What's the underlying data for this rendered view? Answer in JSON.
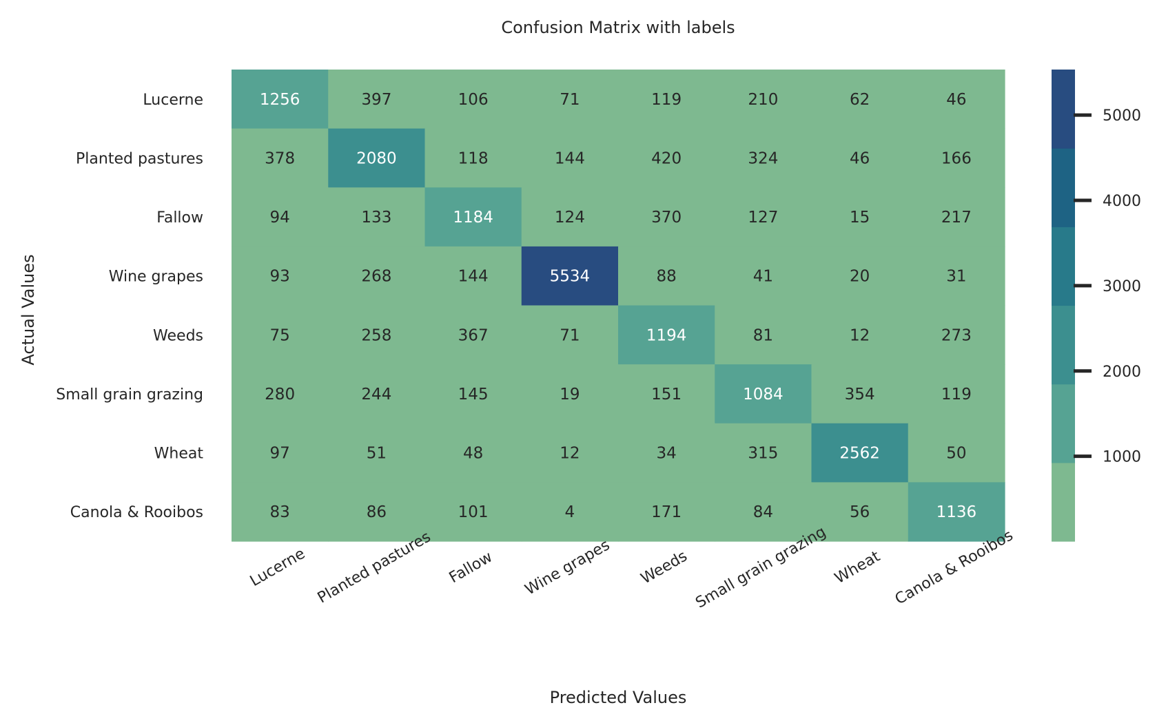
{
  "chart_data": {
    "type": "heatmap",
    "title": "Confusion Matrix with labels",
    "xlabel": "Predicted Values",
    "ylabel": "Actual Values",
    "x_categories": [
      "Lucerne",
      "Planted pastures",
      "Fallow",
      "Wine grapes",
      "Weeds",
      "Small grain grazing",
      "Wheat",
      "Canola & Rooibos"
    ],
    "y_categories": [
      "Lucerne",
      "Planted pastures",
      "Fallow",
      "Wine grapes",
      "Weeds",
      "Small grain grazing",
      "Wheat",
      "Canola & Rooibos"
    ],
    "values": [
      [
        1256,
        397,
        106,
        71,
        119,
        210,
        62,
        46
      ],
      [
        378,
        2080,
        118,
        144,
        420,
        324,
        46,
        166
      ],
      [
        94,
        133,
        1184,
        124,
        370,
        127,
        15,
        217
      ],
      [
        93,
        268,
        144,
        5534,
        88,
        41,
        20,
        31
      ],
      [
        75,
        258,
        367,
        71,
        1194,
        81,
        12,
        273
      ],
      [
        280,
        244,
        145,
        19,
        151,
        1084,
        354,
        119
      ],
      [
        97,
        51,
        48,
        12,
        34,
        315,
        2562,
        50
      ],
      [
        83,
        86,
        101,
        4,
        171,
        84,
        56,
        1136
      ]
    ],
    "colorbar": {
      "min": 4,
      "max": 5534,
      "ticks": [
        1000,
        2000,
        3000,
        4000,
        5000
      ],
      "colors": [
        "#7eb990",
        "#56a393",
        "#3c8f8f",
        "#287a8a",
        "#1e6384",
        "#284c80"
      ]
    },
    "x_tick_rotation": 30,
    "grid": false,
    "legend": "colorbar-right"
  }
}
